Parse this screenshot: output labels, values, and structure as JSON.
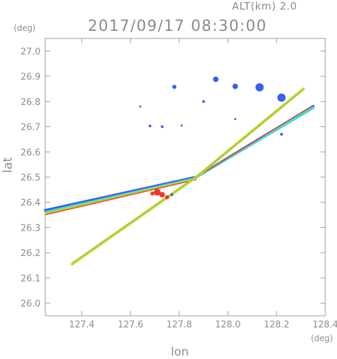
{
  "header": {
    "altitude_label": "ALT(km) 2.0",
    "datetime": "2017/09/17 08:30:00"
  },
  "chart_data": {
    "type": "scatter",
    "title": "2017/09/17 08:30:00",
    "xlabel": "lon",
    "ylabel": "lat",
    "x_unit": "(deg)",
    "y_unit": "(deg)",
    "xlim": [
      127.25,
      128.4
    ],
    "ylim": [
      25.95,
      27.05
    ],
    "x_ticks": [
      127.4,
      127.6,
      127.8,
      128.0,
      128.2,
      128.4
    ],
    "x_tick_labels": [
      "127.4",
      "127.6",
      "127.8",
      "128.0",
      "128.2",
      "128.4"
    ],
    "y_ticks": [
      26.0,
      26.1,
      26.2,
      26.3,
      26.4,
      26.5,
      26.6,
      26.7,
      26.8,
      26.9,
      27.0
    ],
    "y_tick_labels": [
      "26.0",
      "26.1",
      "26.2",
      "26.3",
      "26.4",
      "26.5",
      "26.6",
      "26.7",
      "26.8",
      "26.9",
      "27.0"
    ],
    "grid": false,
    "colors": {
      "blue": "#3a5ff0",
      "cyan": "#44d8d8",
      "green": "#9be83c",
      "orange": "#f0a020",
      "red": "#e83a2a"
    },
    "beams": [
      {
        "from": [
          127.25,
          26.368
        ],
        "to": [
          127.87,
          26.5
        ],
        "color": "blue",
        "width": 4
      },
      {
        "from": [
          127.25,
          26.362
        ],
        "to": [
          127.87,
          26.497
        ],
        "color": "cyan",
        "width": 2.5
      },
      {
        "from": [
          127.25,
          26.357
        ],
        "to": [
          127.87,
          26.494
        ],
        "color": "green",
        "width": 2
      },
      {
        "from": [
          127.25,
          26.353
        ],
        "to": [
          127.87,
          26.492
        ],
        "color": "orange",
        "width": 1.5
      },
      {
        "from": [
          127.25,
          26.35
        ],
        "to": [
          127.87,
          26.49
        ],
        "color": "red",
        "width": 1.2
      },
      {
        "from": [
          127.87,
          26.5
        ],
        "to": [
          128.35,
          26.78
        ],
        "color": "blue",
        "width": 4
      },
      {
        "from": [
          127.87,
          26.5
        ],
        "to": [
          128.35,
          26.775
        ],
        "color": "cyan",
        "width": 4
      },
      {
        "from": [
          127.87,
          26.5
        ],
        "to": [
          128.35,
          26.785
        ],
        "color": "red",
        "width": 1.5
      },
      {
        "from": [
          127.36,
          26.155
        ],
        "to": [
          127.87,
          26.5
        ],
        "color": "green",
        "width": 4
      },
      {
        "from": [
          127.36,
          26.16
        ],
        "to": [
          127.87,
          26.502
        ],
        "color": "orange",
        "width": 1.2
      },
      {
        "from": [
          127.87,
          26.5
        ],
        "to": [
          128.31,
          26.85
        ],
        "color": "green",
        "width": 4
      },
      {
        "from": [
          127.87,
          26.5
        ],
        "to": [
          128.31,
          26.845
        ],
        "color": "orange",
        "width": 1.2
      }
    ],
    "echoes": [
      {
        "x": 127.78,
        "y": 26.858,
        "color": "blue",
        "size": 3
      },
      {
        "x": 127.95,
        "y": 26.888,
        "color": "blue",
        "size": 4
      },
      {
        "x": 128.03,
        "y": 26.86,
        "color": "blue",
        "size": 4
      },
      {
        "x": 128.13,
        "y": 26.856,
        "color": "blue",
        "size": 6
      },
      {
        "x": 128.22,
        "y": 26.815,
        "color": "blue",
        "size": 6
      },
      {
        "x": 127.9,
        "y": 26.8,
        "color": "blue",
        "size": 2
      },
      {
        "x": 127.64,
        "y": 26.78,
        "color": "blue",
        "size": 1.5
      },
      {
        "x": 127.68,
        "y": 26.703,
        "color": "blue",
        "size": 2
      },
      {
        "x": 127.73,
        "y": 26.7,
        "color": "blue",
        "size": 2
      },
      {
        "x": 127.81,
        "y": 26.705,
        "color": "blue",
        "size": 1.5
      },
      {
        "x": 128.03,
        "y": 26.73,
        "color": "blue",
        "size": 1.5
      },
      {
        "x": 128.22,
        "y": 26.67,
        "color": "blue",
        "size": 2
      },
      {
        "x": 127.71,
        "y": 26.44,
        "color": "red",
        "size": 5
      },
      {
        "x": 127.73,
        "y": 26.43,
        "color": "red",
        "size": 4
      },
      {
        "x": 127.75,
        "y": 26.42,
        "color": "red",
        "size": 3
      },
      {
        "x": 127.69,
        "y": 26.435,
        "color": "red",
        "size": 3
      },
      {
        "x": 127.77,
        "y": 26.43,
        "color": "blue",
        "size": 2
      }
    ]
  }
}
